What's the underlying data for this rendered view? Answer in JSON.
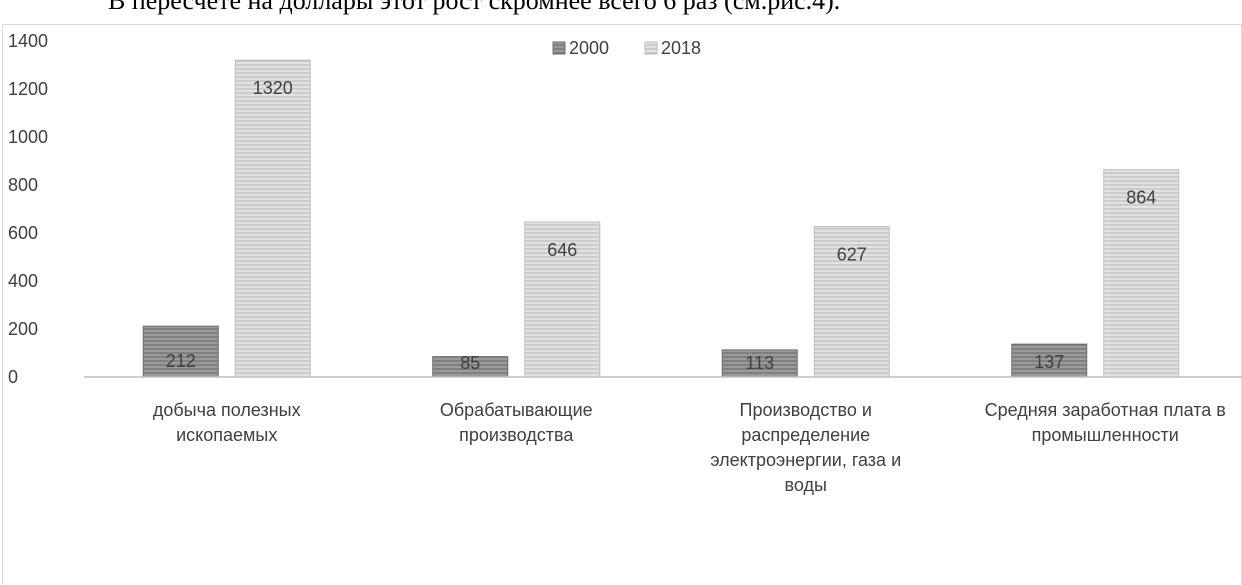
{
  "page_text": "В пересчете на доллары этот рост скромнее всего 6 раз (см.рис.4).",
  "colors": {
    "s2000": "#808080",
    "s2018": "#d0d0d0",
    "axis": "#bfbfbf",
    "text": "#404040"
  },
  "chart_data": {
    "type": "bar",
    "title": "",
    "xlabel": "",
    "ylabel": "",
    "ylim": [
      0,
      1400
    ],
    "yticks": [
      "0",
      "200",
      "400",
      "600",
      "800",
      "1000",
      "1200",
      "1400"
    ],
    "grid": false,
    "legend": "top-center",
    "categories": [
      [
        "добыча полезных",
        "ископаемых"
      ],
      [
        "Обрабатывающие",
        "производства"
      ],
      [
        "Производство и",
        "распределение",
        "электроэнергии, газа и",
        "воды"
      ],
      [
        "Средняя заработная плата в",
        "промышленности"
      ]
    ],
    "series": [
      {
        "name": "2000",
        "values": [
          212,
          85,
          113,
          137
        ]
      },
      {
        "name": "2018",
        "values": [
          1320,
          646,
          627,
          864
        ]
      }
    ],
    "data_labels": [
      [
        "212",
        "85",
        "113",
        "137"
      ],
      [
        "1320",
        "646",
        "627",
        "864"
      ]
    ]
  }
}
